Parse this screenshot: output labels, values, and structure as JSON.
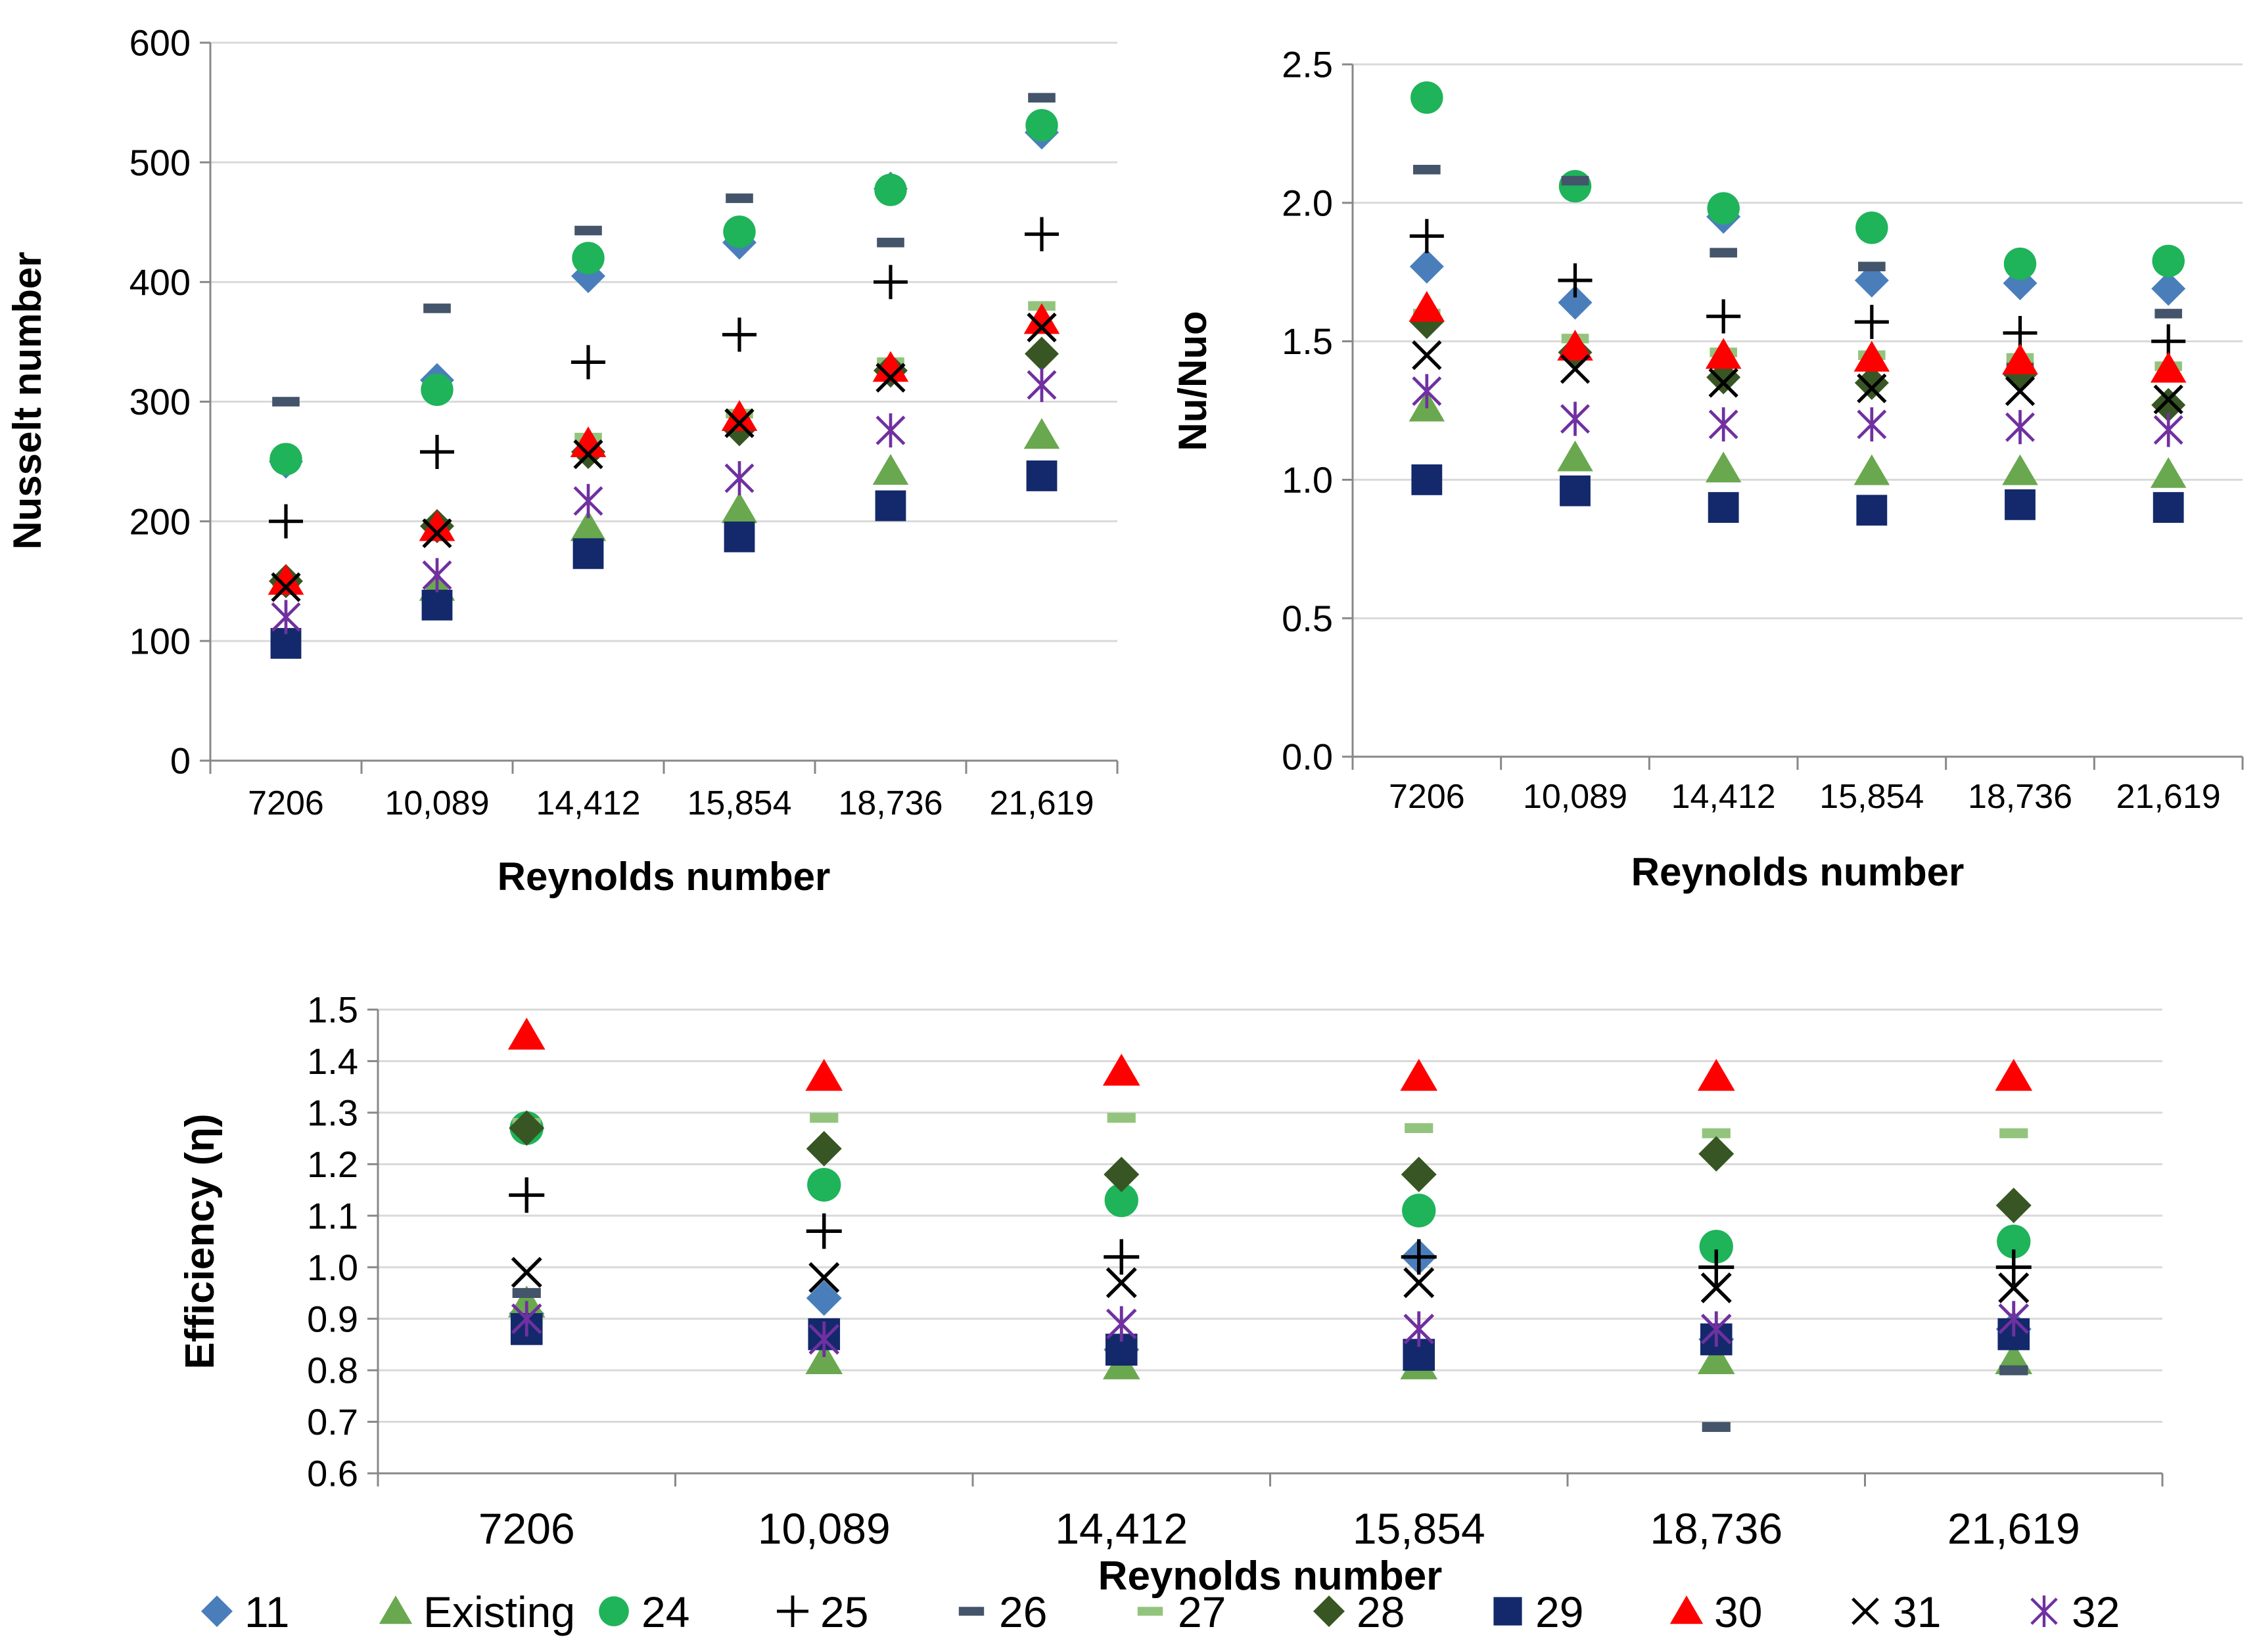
{
  "series_styles": {
    "11": {
      "marker": "diamond",
      "color": "#4a7ebb"
    },
    "Existing": {
      "marker": "triangle",
      "color": "#6aa84f"
    },
    "24": {
      "marker": "circle",
      "color": "#1fb35a"
    },
    "25": {
      "marker": "plus",
      "color": "#000000"
    },
    "26": {
      "marker": "dash",
      "color": "#44546a"
    },
    "27": {
      "marker": "dash",
      "color": "#93c47d"
    },
    "28": {
      "marker": "diamond",
      "color": "#375623"
    },
    "29": {
      "marker": "square",
      "color": "#13296b"
    },
    "30": {
      "marker": "triangle",
      "color": "#ff0000"
    },
    "31": {
      "marker": "x",
      "color": "#000000"
    },
    "32": {
      "marker": "asterisk",
      "color": "#7030a0"
    }
  },
  "legend": [
    {
      "key": "11",
      "label": "11"
    },
    {
      "key": "Existing",
      "label": "Existing"
    },
    {
      "key": "24",
      "label": "24"
    },
    {
      "key": "25",
      "label": "25"
    },
    {
      "key": "26",
      "label": "26"
    },
    {
      "key": "27",
      "label": "27"
    },
    {
      "key": "28",
      "label": "28"
    },
    {
      "key": "29",
      "label": "29"
    },
    {
      "key": "30",
      "label": "30"
    },
    {
      "key": "31",
      "label": "31"
    },
    {
      "key": "32",
      "label": "32"
    }
  ],
  "chart_data": [
    {
      "id": "nusselt",
      "type": "scatter",
      "title": "",
      "xlabel": "Reynolds number",
      "ylabel": "Nusselt number",
      "categories": [
        "7206",
        "10,089",
        "14,412",
        "15,854",
        "18,736",
        "21,619"
      ],
      "ylim": [
        0,
        600
      ],
      "yticks": [
        0,
        100,
        200,
        300,
        400,
        500,
        600
      ],
      "ytick_labels": [
        "0",
        "100",
        "200",
        "300",
        "400",
        "500",
        "600"
      ],
      "grid": true,
      "series": [
        {
          "name": "11",
          "values": [
            250,
            318,
            405,
            433,
            478,
            525
          ]
        },
        {
          "name": "Existing",
          "values": [
            150,
            145,
            195,
            210,
            242,
            272
          ]
        },
        {
          "name": "24",
          "values": [
            252,
            310,
            420,
            442,
            477,
            531
          ]
        },
        {
          "name": "25",
          "values": [
            200,
            258,
            333,
            356,
            400,
            440
          ]
        },
        {
          "name": "26",
          "values": [
            300,
            378,
            443,
            470,
            433,
            554
          ]
        },
        {
          "name": "27",
          "values": [
            150,
            198,
            270,
            290,
            333,
            380
          ]
        },
        {
          "name": "28",
          "values": [
            150,
            196,
            258,
            277,
            326,
            340
          ]
        },
        {
          "name": "29",
          "values": [
            98,
            130,
            173,
            187,
            213,
            238
          ]
        },
        {
          "name": "30",
          "values": [
            150,
            195,
            265,
            287,
            328,
            368
          ]
        },
        {
          "name": "31",
          "values": [
            145,
            190,
            256,
            282,
            320,
            362
          ]
        },
        {
          "name": "32",
          "values": [
            120,
            155,
            217,
            236,
            276,
            314
          ]
        }
      ]
    },
    {
      "id": "nu-ratio",
      "type": "scatter",
      "title": "",
      "xlabel": "Reynolds number",
      "ylabel": "Nu/Nuo",
      "categories": [
        "7206",
        "10,089",
        "14,412",
        "15,854",
        "18,736",
        "21,619"
      ],
      "ylim": [
        0,
        2.5
      ],
      "yticks": [
        0,
        0.5,
        1.0,
        1.5,
        2.0,
        2.5
      ],
      "ytick_labels": [
        "0.0",
        "0.5",
        "1.0",
        "1.5",
        "2.0",
        "2.5"
      ],
      "grid": true,
      "series": [
        {
          "name": "11",
          "values": [
            1.77,
            1.64,
            1.95,
            1.72,
            1.71,
            1.69
          ]
        },
        {
          "name": "Existing",
          "values": [
            1.26,
            1.08,
            1.04,
            1.03,
            1.03,
            1.02
          ]
        },
        {
          "name": "24",
          "values": [
            2.38,
            2.06,
            1.98,
            1.91,
            1.78,
            1.79
          ]
        },
        {
          "name": "25",
          "values": [
            1.88,
            1.72,
            1.59,
            1.57,
            1.53,
            1.5
          ]
        },
        {
          "name": "26",
          "values": [
            2.12,
            2.08,
            1.82,
            1.77,
            1.41,
            1.6
          ]
        },
        {
          "name": "27",
          "values": [
            1.6,
            1.51,
            1.46,
            1.45,
            1.44,
            1.41
          ]
        },
        {
          "name": "28",
          "values": [
            1.57,
            1.46,
            1.37,
            1.35,
            1.38,
            1.27
          ]
        },
        {
          "name": "29",
          "values": [
            1.0,
            0.96,
            0.9,
            0.89,
            0.91,
            0.9
          ]
        },
        {
          "name": "30",
          "values": [
            1.62,
            1.48,
            1.45,
            1.44,
            1.43,
            1.4
          ]
        },
        {
          "name": "31",
          "values": [
            1.45,
            1.4,
            1.35,
            1.33,
            1.32,
            1.29
          ]
        },
        {
          "name": "32",
          "values": [
            1.32,
            1.22,
            1.2,
            1.2,
            1.19,
            1.18
          ]
        }
      ]
    },
    {
      "id": "efficiency",
      "type": "scatter",
      "title": "",
      "xlabel": "Reynolds number",
      "ylabel": "Efficiency (η)",
      "categories": [
        "7206",
        "10,089",
        "14,412",
        "15,854",
        "18,736",
        "21,619"
      ],
      "ylim": [
        0.6,
        1.5
      ],
      "yticks": [
        0.6,
        0.7,
        0.8,
        0.9,
        1.0,
        1.1,
        1.2,
        1.3,
        1.4,
        1.5
      ],
      "ytick_labels": [
        "0.6",
        "0.7",
        "0.8",
        "0.9",
        "1.0",
        "1.1",
        "1.2",
        "1.3",
        "1.4",
        "1.5"
      ],
      "grid": true,
      "series": [
        {
          "name": "11",
          "values": [
            0.91,
            0.94,
            0.84,
            1.02,
            0.86,
            0.88
          ]
        },
        {
          "name": "Existing",
          "values": [
            0.93,
            0.82,
            0.81,
            0.81,
            0.82,
            0.82
          ]
        },
        {
          "name": "24",
          "values": [
            1.27,
            1.16,
            1.13,
            1.11,
            1.04,
            1.05
          ]
        },
        {
          "name": "25",
          "values": [
            1.14,
            1.07,
            1.02,
            1.02,
            1.0,
            1.0
          ]
        },
        {
          "name": "26",
          "values": [
            0.95,
            0.87,
            0.84,
            0.83,
            0.69,
            0.8
          ]
        },
        {
          "name": "27",
          "values": [
            1.28,
            1.29,
            1.29,
            1.27,
            1.26,
            1.26
          ]
        },
        {
          "name": "28",
          "values": [
            1.27,
            1.23,
            1.18,
            1.18,
            1.22,
            1.12
          ]
        },
        {
          "name": "29",
          "values": [
            0.88,
            0.87,
            0.84,
            0.83,
            0.86,
            0.87
          ]
        },
        {
          "name": "30",
          "values": [
            1.45,
            1.37,
            1.38,
            1.37,
            1.37,
            1.37
          ]
        },
        {
          "name": "31",
          "values": [
            0.99,
            0.98,
            0.97,
            0.97,
            0.96,
            0.96
          ]
        },
        {
          "name": "32",
          "values": [
            0.9,
            0.86,
            0.89,
            0.88,
            0.88,
            0.9
          ]
        }
      ]
    }
  ]
}
